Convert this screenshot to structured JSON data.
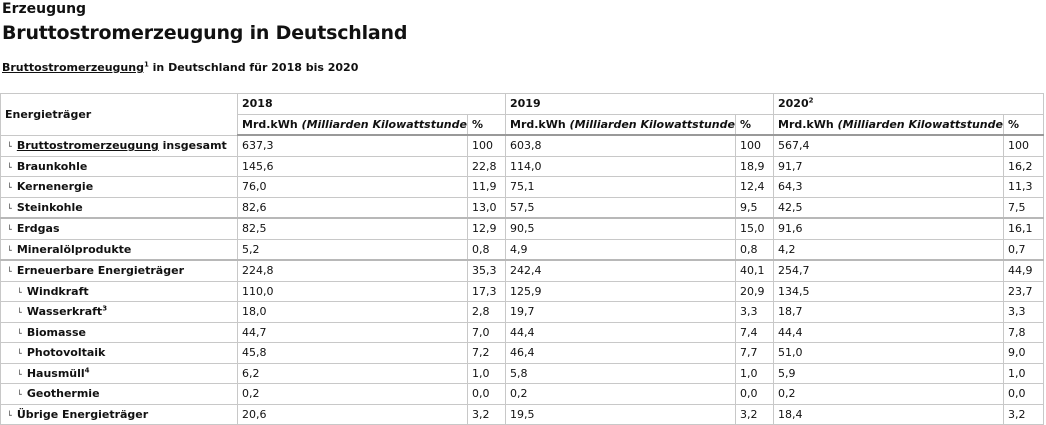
{
  "header": {
    "kicker": "Erzeugung",
    "title": "Bruttostromerzeugung in Deutschland",
    "caption_link": "Bruttostromerzeugung",
    "caption_sup": "1",
    "caption_rest": " in Deutschland für 2018 bis 2020"
  },
  "table": {
    "row_header": "Energieträger",
    "years": [
      {
        "label": "2018",
        "sup": ""
      },
      {
        "label": "2019",
        "sup": ""
      },
      {
        "label": "2020",
        "sup": "2"
      }
    ],
    "unit_label": "Mrd.kWh (Milliarden Kilowattstunden)",
    "unit_prefix": "Mrd.kWh ",
    "unit_italic": "(Milliarden Kilowattstunden)",
    "pct_label": "%",
    "rows": [
      {
        "label": "Bruttostromerzeugung",
        "label_suffix": " insgesamt",
        "sup": "",
        "level": 1,
        "link": true,
        "v": [
          "637,3",
          "100",
          "603,8",
          "100",
          "567,4",
          "100"
        ]
      },
      {
        "label": "Braunkohle",
        "label_suffix": "",
        "sup": "",
        "level": 1,
        "link": false,
        "v": [
          "145,6",
          "22,8",
          "114,0",
          "18,9",
          "91,7",
          "16,2"
        ]
      },
      {
        "label": "Kernenergie",
        "label_suffix": "",
        "sup": "",
        "level": 1,
        "link": false,
        "v": [
          "76,0",
          "11,9",
          "75,1",
          "12,4",
          "64,3",
          "11,3"
        ]
      },
      {
        "label": "Steinkohle",
        "label_suffix": "",
        "sup": "",
        "level": 1,
        "link": false,
        "v": [
          "82,6",
          "13,0",
          "57,5",
          "9,5",
          "42,5",
          "7,5"
        ]
      },
      {
        "label": "Erdgas",
        "label_suffix": "",
        "sup": "",
        "level": 1,
        "link": false,
        "v": [
          "82,5",
          "12,9",
          "90,5",
          "15,0",
          "91,6",
          "16,1"
        ]
      },
      {
        "label": "Mineralölprodukte",
        "label_suffix": "",
        "sup": "",
        "level": 1,
        "link": false,
        "v": [
          "5,2",
          "0,8",
          "4,9",
          "0,8",
          "4,2",
          "0,7"
        ]
      },
      {
        "label": "Erneuerbare Energieträger",
        "label_suffix": "",
        "sup": "",
        "level": 1,
        "link": false,
        "v": [
          "224,8",
          "35,3",
          "242,4",
          "40,1",
          "254,7",
          "44,9"
        ]
      },
      {
        "label": "Windkraft",
        "label_suffix": "",
        "sup": "",
        "level": 2,
        "link": false,
        "v": [
          "110,0",
          "17,3",
          "125,9",
          "20,9",
          "134,5",
          "23,7"
        ]
      },
      {
        "label": "Wasserkraft",
        "label_suffix": "",
        "sup": "3",
        "level": 2,
        "link": false,
        "v": [
          "18,0",
          "2,8",
          "19,7",
          "3,3",
          "18,7",
          "3,3"
        ]
      },
      {
        "label": "Biomasse",
        "label_suffix": "",
        "sup": "",
        "level": 2,
        "link": false,
        "v": [
          "44,7",
          "7,0",
          "44,4",
          "7,4",
          "44,4",
          "7,8"
        ]
      },
      {
        "label": "Photovoltaik",
        "label_suffix": "",
        "sup": "",
        "level": 2,
        "link": false,
        "v": [
          "45,8",
          "7,2",
          "46,4",
          "7,7",
          "51,0",
          "9,0"
        ]
      },
      {
        "label": "Hausmüll",
        "label_suffix": "",
        "sup": "4",
        "level": 2,
        "link": false,
        "v": [
          "6,2",
          "1,0",
          "5,8",
          "1,0",
          "5,9",
          "1,0"
        ]
      },
      {
        "label": "Geothermie",
        "label_suffix": "",
        "sup": "",
        "level": 2,
        "link": false,
        "v": [
          "0,2",
          "0,0",
          "0,2",
          "0,0",
          "0,2",
          "0,0"
        ]
      },
      {
        "label": "Übrige Energieträger",
        "label_suffix": "",
        "sup": "",
        "level": 1,
        "link": false,
        "v": [
          "20,6",
          "3,2",
          "19,5",
          "3,2",
          "18,4",
          "3,2"
        ]
      }
    ]
  }
}
